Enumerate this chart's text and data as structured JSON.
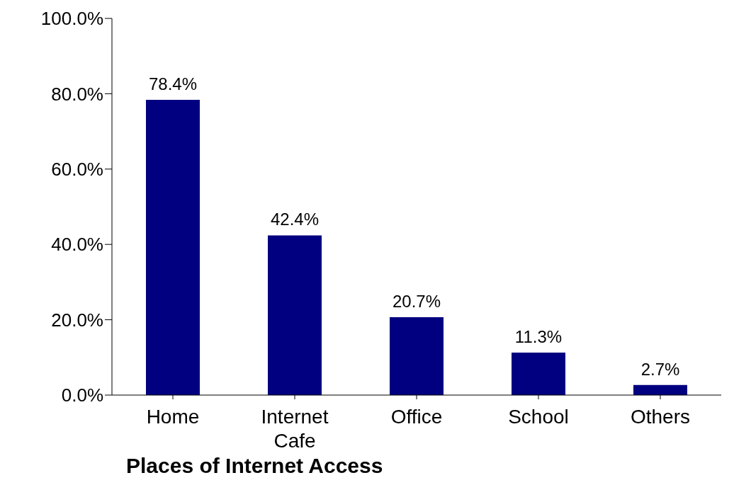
{
  "chart_data": {
    "type": "bar",
    "xlabel": "Places of Internet Access",
    "categories": [
      "Home",
      "Internet Cafe",
      "Office",
      "School",
      "Others"
    ],
    "values": [
      78.4,
      42.4,
      20.7,
      11.3,
      2.7
    ],
    "value_labels": [
      "78.4%",
      "42.4%",
      "20.7%",
      "11.3%",
      "2.7%"
    ],
    "color": "#000080",
    "ylim": [
      0,
      100
    ],
    "yticks": [
      {
        "value": 0,
        "label": "0.0%"
      },
      {
        "value": 20,
        "label": "20.0%"
      },
      {
        "value": 40,
        "label": "40.0%"
      },
      {
        "value": 60,
        "label": "60.0%"
      },
      {
        "value": 80,
        "label": "80.0%"
      },
      {
        "value": 100,
        "label": "100.0%"
      }
    ],
    "grid": false,
    "legend": false
  }
}
